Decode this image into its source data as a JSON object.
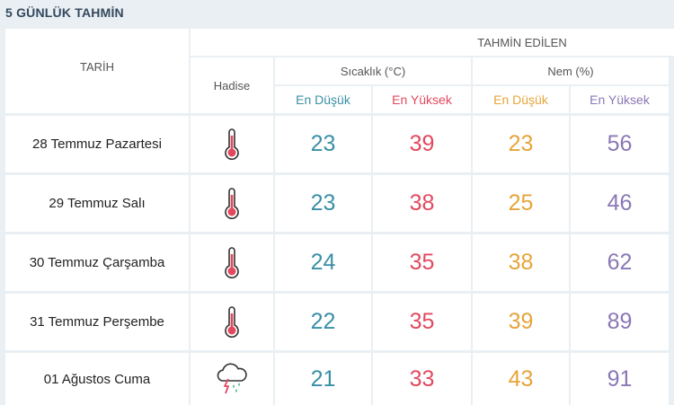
{
  "title": "5 GÜNLÜK TAHMİN",
  "header": {
    "tarih": "TARİH",
    "hadise": "Hadise",
    "tahmin": "TAHMİN EDİLEN",
    "sicaklik": "Sıcaklık (°C)",
    "nem": "Nem (%)",
    "sic_min": "En Düşük",
    "sic_max": "En Yüksek",
    "nem_min": "En Düşük",
    "nem_max": "En Yüksek"
  },
  "colors": {
    "min_temp": "#3a8fa6",
    "max_temp": "#e2495f",
    "min_hum": "#e5a53a",
    "max_hum": "#8a78b5"
  },
  "rows": [
    {
      "date": "28 Temmuz Pazartesi",
      "icon": "thermometer-hot-icon",
      "t_min": "23",
      "t_max": "39",
      "h_min": "23",
      "h_max": "56"
    },
    {
      "date": "29 Temmuz Salı",
      "icon": "thermometer-hot-icon",
      "t_min": "23",
      "t_max": "38",
      "h_min": "25",
      "h_max": "46"
    },
    {
      "date": "30 Temmuz Çarşamba",
      "icon": "thermometer-hot-icon",
      "t_min": "24",
      "t_max": "35",
      "h_min": "38",
      "h_max": "62"
    },
    {
      "date": "31 Temmuz Perşembe",
      "icon": "thermometer-hot-icon",
      "t_min": "22",
      "t_max": "35",
      "h_min": "39",
      "h_max": "89"
    },
    {
      "date": "01 Ağustos Cuma",
      "icon": "thunderstorm-rain-icon",
      "t_min": "21",
      "t_max": "33",
      "h_min": "43",
      "h_max": "91"
    }
  ]
}
